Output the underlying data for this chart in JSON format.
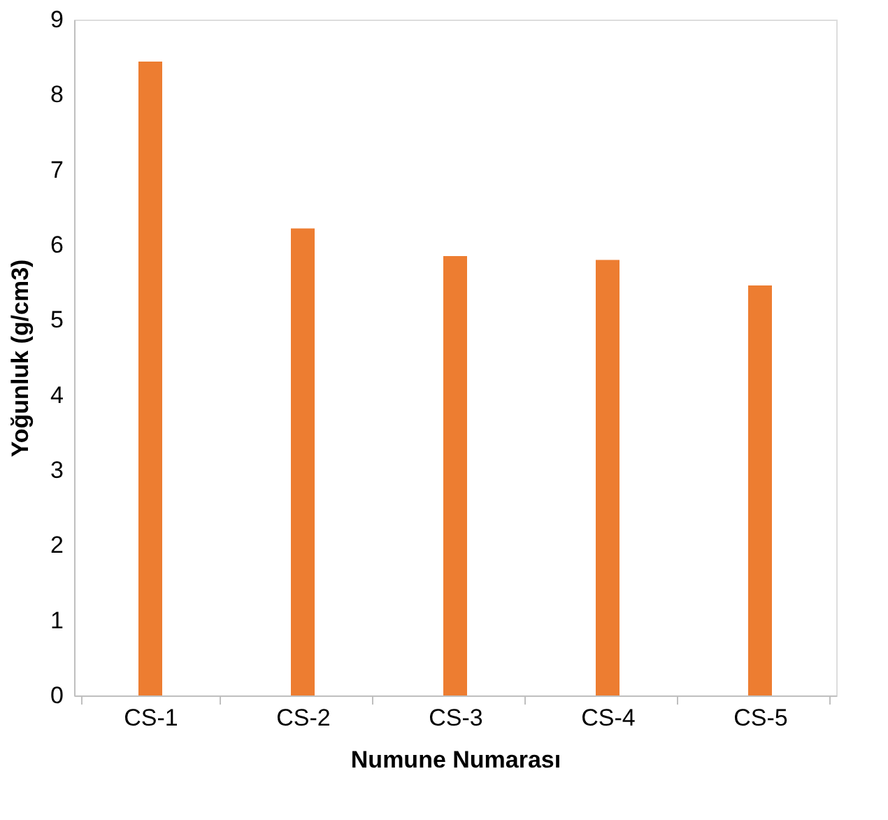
{
  "chart_data": {
    "type": "bar",
    "xlabel": "Numune Numarası",
    "ylabel": "Yoğunluk (g/cm3)",
    "categories": [
      "CS-1",
      "CS-2",
      "CS-3",
      "CS-4",
      "CS-5"
    ],
    "values": [
      8.44,
      6.22,
      5.85,
      5.8,
      5.46
    ],
    "color": "#ed7d31",
    "ylim": [
      0,
      9
    ],
    "yticks": [
      0,
      1,
      2,
      3,
      4,
      5,
      6,
      7,
      8,
      9
    ],
    "grid": false
  }
}
